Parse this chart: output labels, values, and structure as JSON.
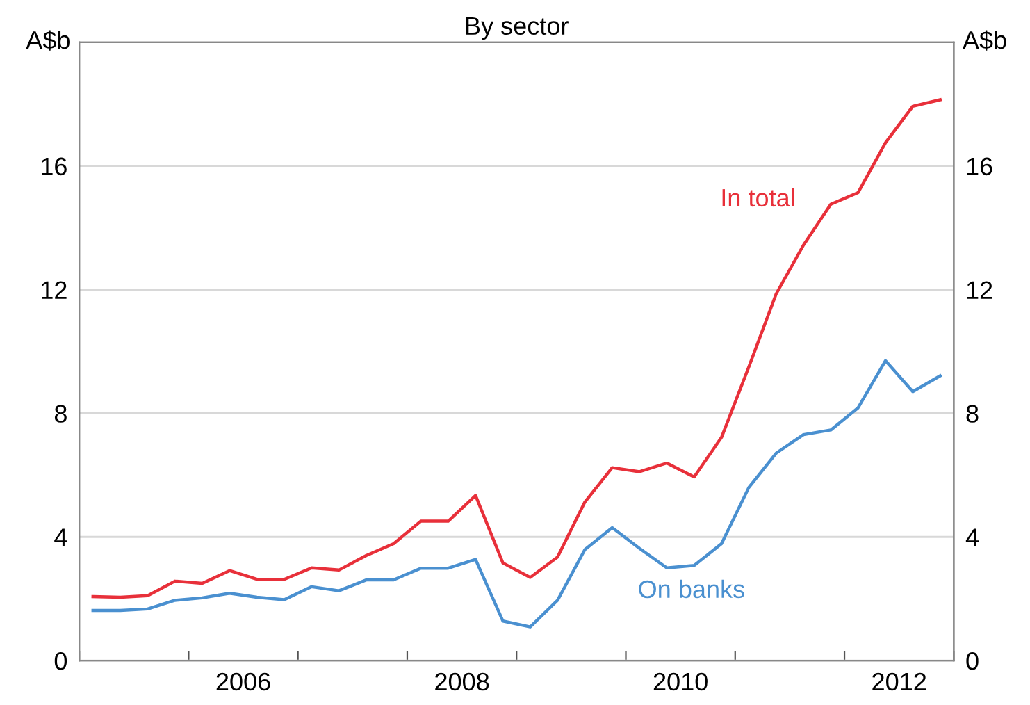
{
  "chart_data": {
    "type": "line",
    "title": "By sector",
    "ylabel": "A$b",
    "y2label": "A$b",
    "x": [
      2005.125,
      2005.375,
      2005.625,
      2005.875,
      2006.125,
      2006.375,
      2006.625,
      2006.875,
      2007.125,
      2007.375,
      2007.625,
      2007.875,
      2008.125,
      2008.375,
      2008.625,
      2008.875,
      2009.125,
      2009.375,
      2009.625,
      2009.875,
      2010.125,
      2010.375,
      2010.625,
      2010.875,
      2011.125,
      2011.375,
      2011.625,
      2011.875,
      2012.125,
      2012.375,
      2012.625,
      2012.875
    ],
    "series": [
      {
        "name": "In total",
        "color": "#e8303a",
        "values": [
          2.07,
          2.05,
          2.1,
          2.57,
          2.5,
          2.91,
          2.63,
          2.63,
          3.0,
          2.93,
          3.4,
          3.78,
          4.51,
          4.51,
          5.34,
          3.16,
          2.69,
          3.35,
          5.13,
          6.24,
          6.11,
          6.39,
          5.94,
          7.22,
          9.5,
          11.86,
          13.44,
          14.76,
          15.14,
          16.75,
          17.93,
          18.14
        ]
      },
      {
        "name": "On banks",
        "color": "#4a90d0",
        "values": [
          1.62,
          1.62,
          1.67,
          1.95,
          2.03,
          2.18,
          2.05,
          1.97,
          2.39,
          2.26,
          2.61,
          2.61,
          2.99,
          2.99,
          3.27,
          1.28,
          1.09,
          1.95,
          3.59,
          4.3,
          3.63,
          3.0,
          3.08,
          3.78,
          5.6,
          6.71,
          7.31,
          7.46,
          8.18,
          9.7,
          8.7,
          9.21
        ]
      }
    ],
    "xlim": [
      2005,
      2013
    ],
    "xticks": [
      {
        "value": 2005,
        "label": null
      },
      {
        "value": 2006,
        "label": null
      },
      {
        "value": 2006.5,
        "label": "2006"
      },
      {
        "value": 2007,
        "label": null
      },
      {
        "value": 2008,
        "label": null
      },
      {
        "value": 2008.5,
        "label": "2008"
      },
      {
        "value": 2009,
        "label": null
      },
      {
        "value": 2010,
        "label": null
      },
      {
        "value": 2010.5,
        "label": "2010"
      },
      {
        "value": 2011,
        "label": null
      },
      {
        "value": 2012,
        "label": null
      },
      {
        "value": 2012.5,
        "label": "2012"
      },
      {
        "value": 2013,
        "label": null
      }
    ],
    "ylim": [
      0,
      20
    ],
    "yticks": [
      0,
      4,
      8,
      12,
      16
    ],
    "y2lim": [
      0,
      20
    ],
    "y2ticks": [
      0,
      4,
      8,
      12,
      16
    ],
    "grid": "y",
    "legend": false,
    "marker": "none",
    "line_style": "solid"
  }
}
